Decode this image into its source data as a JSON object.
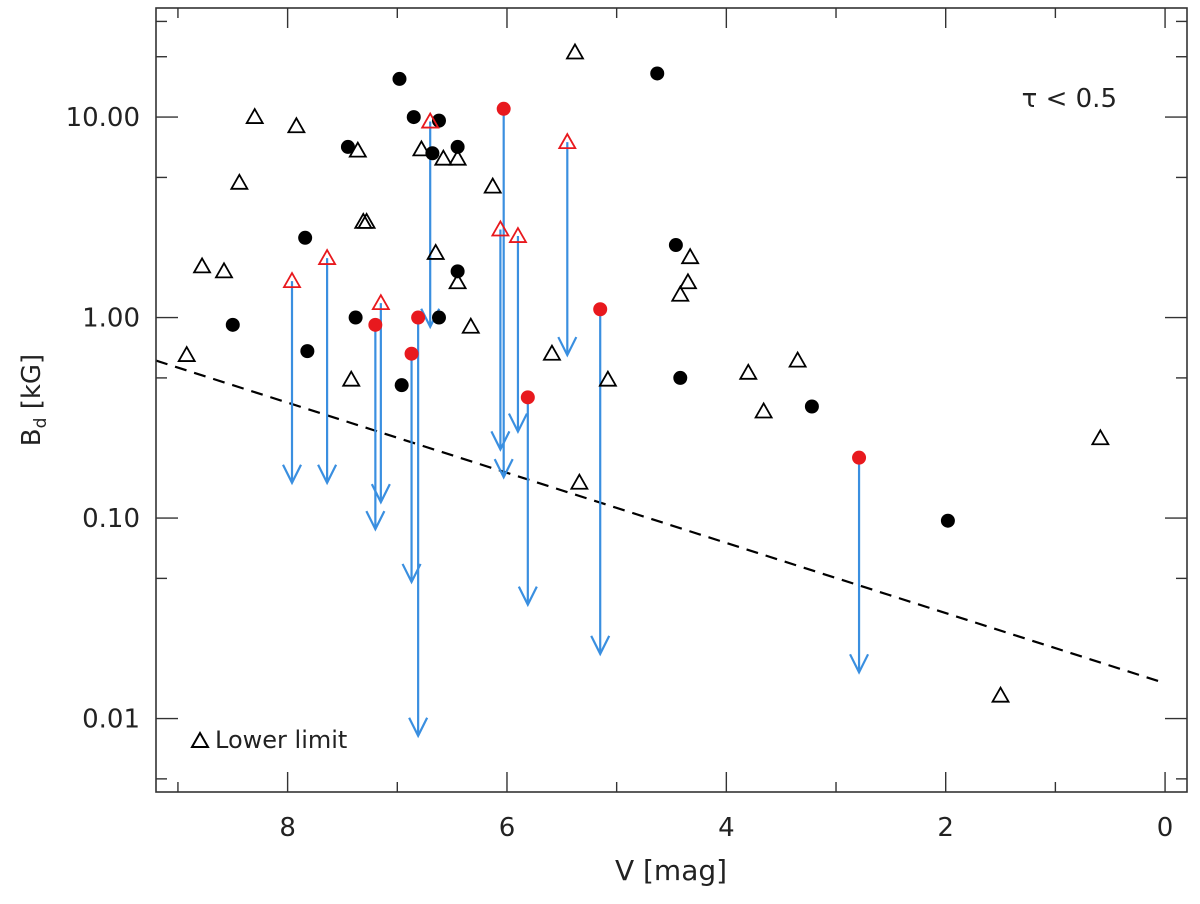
{
  "chart_data": {
    "type": "scatter",
    "xlabel": "V [mag]",
    "ylabel": "B",
    "ylabel_sub": "d",
    "ylabel_unit": " [kG]",
    "xlim": [
      9.2,
      -0.2
    ],
    "ylim": [
      0.0043,
      35
    ],
    "yscale": "log",
    "x_ticks": [
      8,
      6,
      4,
      2,
      0
    ],
    "x_tick_labels": [
      "8",
      "6",
      "4",
      "2",
      "0"
    ],
    "y_ticks": [
      0.01,
      0.1,
      1,
      10
    ],
    "y_tick_labels": [
      "0.01",
      "0.10",
      "1.00",
      "10.00"
    ],
    "annotation": "τ < 0.5",
    "legend_label": "Lower limit",
    "colors": {
      "red": "#e8191e",
      "arrow": "#3a8fe0",
      "black": "#000000"
    },
    "series": [
      {
        "name": "Detections (tau >= 0.5)",
        "marker": "filled-circle",
        "color": "#000000",
        "x": [
          8.5,
          7.84,
          7.82,
          7.45,
          7.38,
          6.98,
          6.96,
          6.85,
          6.68,
          6.62,
          6.62,
          6.45,
          6.45,
          4.63,
          4.46,
          4.42,
          3.22,
          1.98
        ],
        "y": [
          0.92,
          2.5,
          0.68,
          7.1,
          1.0,
          15.5,
          0.46,
          10.0,
          6.6,
          9.6,
          1.0,
          7.1,
          1.7,
          16.5,
          2.3,
          0.5,
          0.36,
          0.097
        ]
      },
      {
        "name": "Lower limits (tau >= 0.5)",
        "marker": "open-triangle",
        "color": "#000000",
        "x": [
          8.92,
          8.78,
          8.58,
          8.44,
          8.3,
          7.92,
          7.42,
          7.36,
          7.31,
          7.28,
          6.78,
          6.65,
          6.58,
          6.45,
          6.45,
          6.33,
          6.13,
          5.59,
          5.38,
          5.34,
          5.08,
          4.42,
          4.35,
          4.33,
          3.8,
          3.66,
          3.35,
          1.5,
          0.59
        ],
        "y": [
          0.65,
          1.8,
          1.7,
          4.7,
          10.0,
          9.0,
          0.49,
          6.8,
          3.0,
          3.0,
          6.9,
          2.1,
          6.2,
          6.2,
          1.5,
          0.9,
          4.5,
          0.66,
          21.0,
          0.15,
          0.49,
          1.3,
          1.5,
          2.0,
          0.53,
          0.34,
          0.61,
          0.013,
          0.25
        ]
      },
      {
        "name": "Detections (tau < 0.5)",
        "marker": "filled-circle",
        "color": "#e8191e",
        "x": [
          7.2,
          6.87,
          6.81,
          6.03,
          5.81,
          5.15,
          2.79
        ],
        "y": [
          0.92,
          0.66,
          1.0,
          11.0,
          0.4,
          1.1,
          0.2
        ],
        "y_lower": [
          0.088,
          0.048,
          0.0082,
          0.16,
          0.037,
          0.021,
          0.017
        ]
      },
      {
        "name": "Lower limits (tau < 0.5)",
        "marker": "open-triangle",
        "color": "#e8191e",
        "x": [
          7.96,
          7.64,
          7.15,
          6.7,
          6.06,
          5.9,
          5.45
        ],
        "y": [
          1.52,
          1.98,
          1.18,
          9.5,
          2.75,
          2.55,
          7.5
        ],
        "y_lower": [
          0.15,
          0.15,
          0.12,
          0.9,
          0.22,
          0.27,
          0.65
        ]
      },
      {
        "name": "Dashed trend",
        "marker": "dashed-line",
        "color": "#000000",
        "x": [
          9.2,
          0.0
        ],
        "y": [
          0.61,
          0.015
        ]
      }
    ]
  }
}
